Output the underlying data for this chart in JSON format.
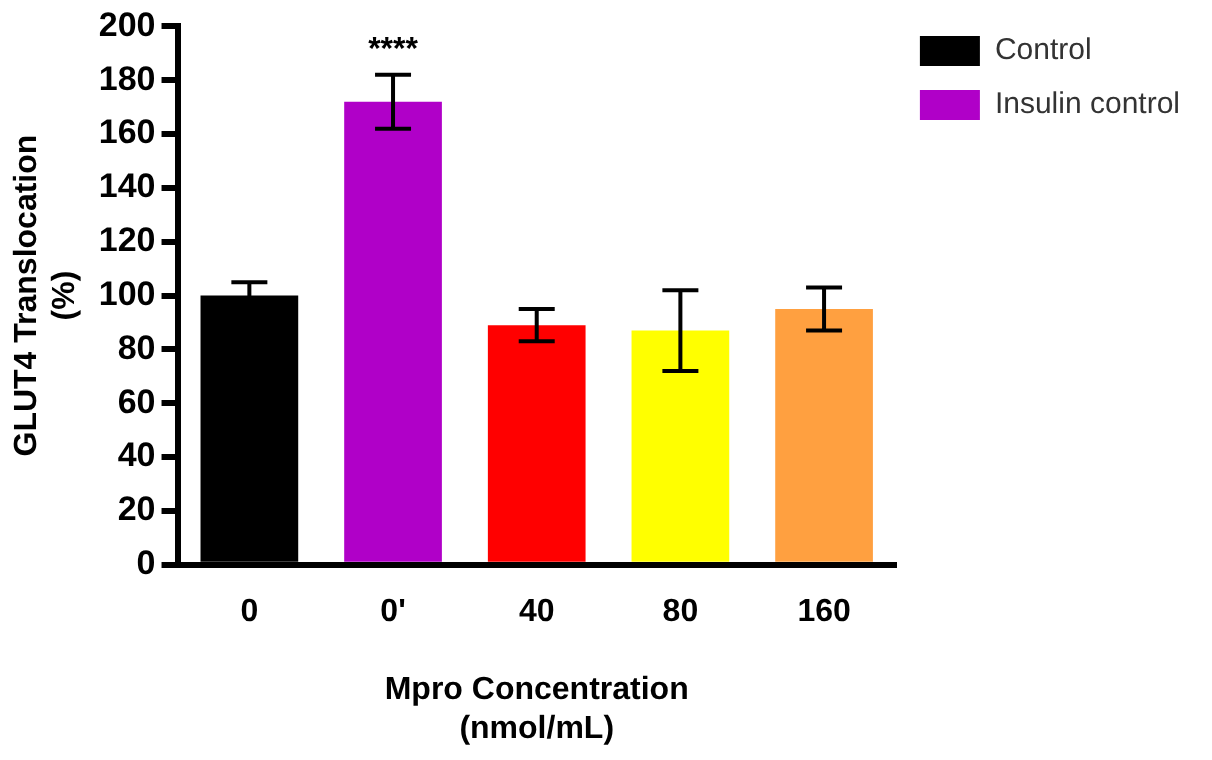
{
  "chart_data": {
    "type": "bar",
    "categories": [
      "0",
      "0'",
      "40",
      "80",
      "160"
    ],
    "series": [
      {
        "name": "Control",
        "color": "#000000",
        "values": [
          100,
          null,
          null,
          null,
          null
        ],
        "errors": [
          5,
          null,
          null,
          null,
          null
        ]
      },
      {
        "name": "Insulin control",
        "color": "#b000c8",
        "values": [
          null,
          172,
          null,
          null,
          null
        ],
        "errors": [
          null,
          10,
          null,
          null,
          null
        ]
      },
      {
        "colors": [
          null,
          null,
          "#ff0000",
          "#ffff00",
          "#ffa040"
        ],
        "values": [
          null,
          null,
          89,
          87,
          95
        ],
        "errors": [
          null,
          null,
          6,
          15,
          8
        ]
      }
    ],
    "xlabel": "Mpro Concentration\n(nmol/mL)",
    "ylabel": "GLUT4 Translocation\n(%)",
    "ylim": [
      0,
      200
    ],
    "yticks": [
      0,
      20,
      40,
      60,
      80,
      100,
      120,
      140,
      160,
      180,
      200
    ],
    "annotations": [
      "****"
    ],
    "grid": false,
    "legend": "top right"
  }
}
